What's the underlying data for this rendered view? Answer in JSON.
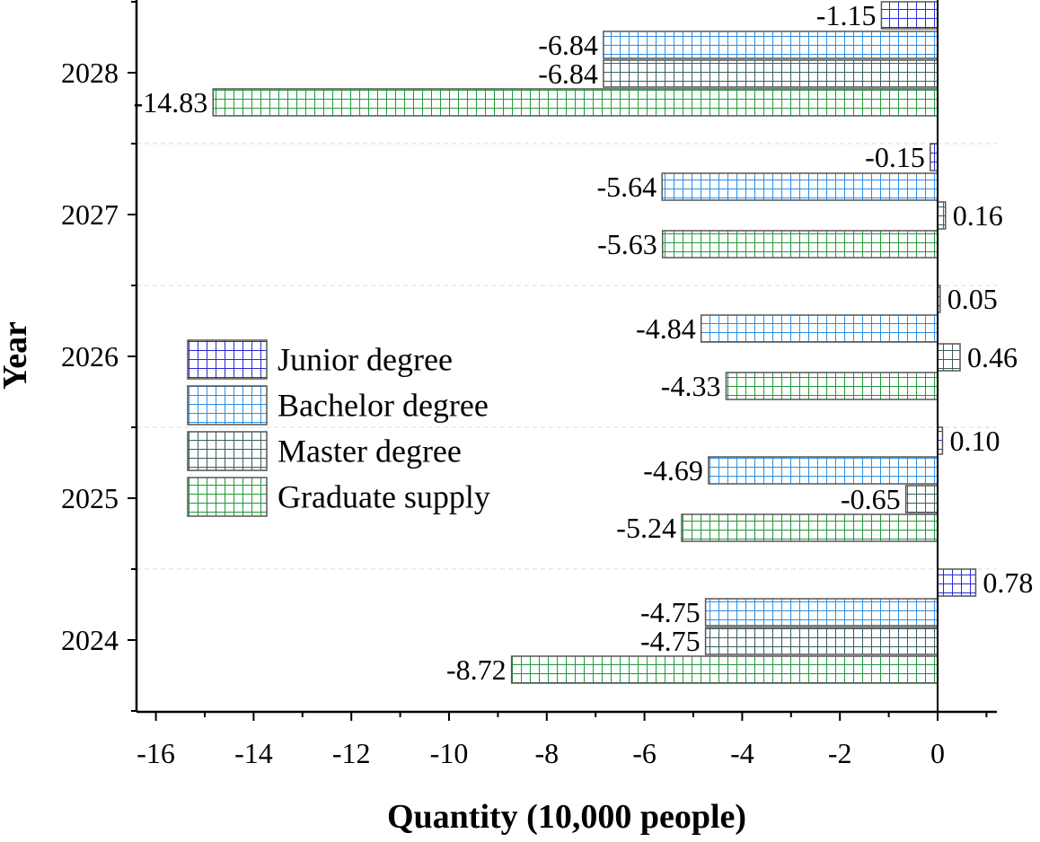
{
  "chart_data": {
    "type": "bar",
    "orientation": "horizontal",
    "xlabel": "Quantity (10,000 people)",
    "ylabel": "Year",
    "xlim": [
      -16.4,
      1.2
    ],
    "x_ticks": [
      -16,
      -14,
      -12,
      -10,
      -8,
      -6,
      -4,
      -2,
      0
    ],
    "x_tick_labels": [
      "-16",
      "-14",
      "-12",
      "-10",
      "-8",
      "-6",
      "-4",
      "-2",
      "0"
    ],
    "categories": [
      "2024",
      "2025",
      "2026",
      "2027",
      "2028"
    ],
    "series": [
      {
        "name": "Junior degree",
        "values": [
          0.78,
          0.1,
          0.05,
          -0.15,
          -1.15
        ],
        "labels": [
          "0.78",
          "0.10",
          "0.05",
          "-0.15",
          "-1.15"
        ],
        "color": "#2b2bd6"
      },
      {
        "name": "Bachelor degree",
        "values": [
          -4.75,
          -4.69,
          -4.84,
          -5.64,
          -6.84
        ],
        "labels": [
          "-4.75",
          "-4.69",
          "-4.84",
          "-5.64",
          "-6.84"
        ],
        "color": "#2b8fe6"
      },
      {
        "name": "Master degree",
        "values": [
          -4.75,
          -0.65,
          0.46,
          0.16,
          -6.84
        ],
        "labels": [
          "-4.75",
          "-0.65",
          "0.46",
          "0.16",
          "-6.84"
        ],
        "color": "#3a5f5f"
      },
      {
        "name": "Graduate supply",
        "values": [
          -8.72,
          -5.24,
          -4.33,
          -5.63,
          -14.83
        ],
        "labels": [
          "-8.72",
          "-5.24",
          "-4.33",
          "-5.63",
          "-14.83"
        ],
        "color": "#1f9a3a"
      }
    ],
    "legend_position": "middle-left",
    "bar_pattern": "grid",
    "grid": false
  }
}
